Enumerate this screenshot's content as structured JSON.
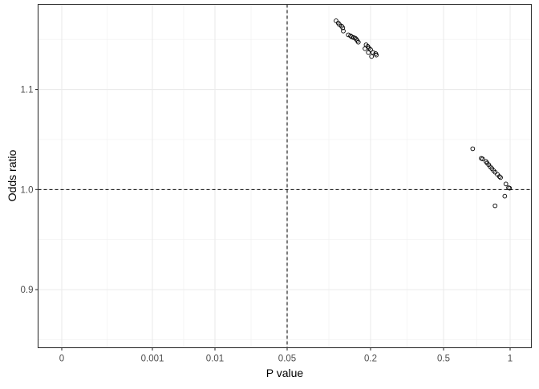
{
  "chart_data": {
    "type": "scatter",
    "title": "",
    "xlabel": "P value",
    "ylabel": "Odds ratio",
    "x_ticks": [
      0,
      0.001,
      0.01,
      0.05,
      0.2,
      0.5,
      1
    ],
    "x_tick_labels": [
      "0",
      "0.001",
      "0.01",
      "0.05",
      "0.2",
      "0.5",
      "1"
    ],
    "x_scale": "custom-nonlinear",
    "y_ticks": [
      0.9,
      1.0,
      1.1
    ],
    "y_tick_labels": [
      "0.9",
      "1.0",
      "1.1"
    ],
    "ylim": [
      0.842,
      1.185
    ],
    "grid": true,
    "reference_lines": {
      "vertical_x": 0.05,
      "horizontal_y": 1.0,
      "style": "dashed"
    },
    "marker": {
      "shape": "open-circle",
      "color": "#000000"
    },
    "points": [
      [
        0.138,
        1.1686
      ],
      [
        0.142,
        1.1664
      ],
      [
        0.144,
        1.1648
      ],
      [
        0.148,
        1.1632
      ],
      [
        0.15,
        1.1616
      ],
      [
        0.151,
        1.1584
      ],
      [
        0.16,
        1.1546
      ],
      [
        0.164,
        1.1536
      ],
      [
        0.166,
        1.1526
      ],
      [
        0.169,
        1.152
      ],
      [
        0.172,
        1.1514
      ],
      [
        0.174,
        1.1504
      ],
      [
        0.176,
        1.1488
      ],
      [
        0.178,
        1.1472
      ],
      [
        0.192,
        1.1446
      ],
      [
        0.195,
        1.143
      ],
      [
        0.19,
        1.1408
      ],
      [
        0.197,
        1.1414
      ],
      [
        0.2,
        1.1398
      ],
      [
        0.21,
        1.137
      ],
      [
        0.221,
        1.1358
      ],
      [
        0.204,
        1.133
      ],
      [
        0.224,
        1.1344
      ],
      [
        0.196,
        1.137
      ],
      [
        0.719,
        1.0408
      ],
      [
        0.783,
        1.0312
      ],
      [
        0.793,
        1.0306
      ],
      [
        0.819,
        1.028
      ],
      [
        0.827,
        1.0264
      ],
      [
        0.839,
        1.0248
      ],
      [
        0.851,
        1.0226
      ],
      [
        0.863,
        1.021
      ],
      [
        0.875,
        1.019
      ],
      [
        0.887,
        1.0174
      ],
      [
        0.904,
        1.0152
      ],
      [
        0.92,
        1.013
      ],
      [
        0.928,
        1.012
      ],
      [
        0.968,
        1.0056
      ],
      [
        0.988,
        1.0018
      ],
      [
        0.996,
        1.0014
      ],
      [
        0.96,
        0.9934
      ],
      [
        0.887,
        0.9838
      ]
    ]
  }
}
